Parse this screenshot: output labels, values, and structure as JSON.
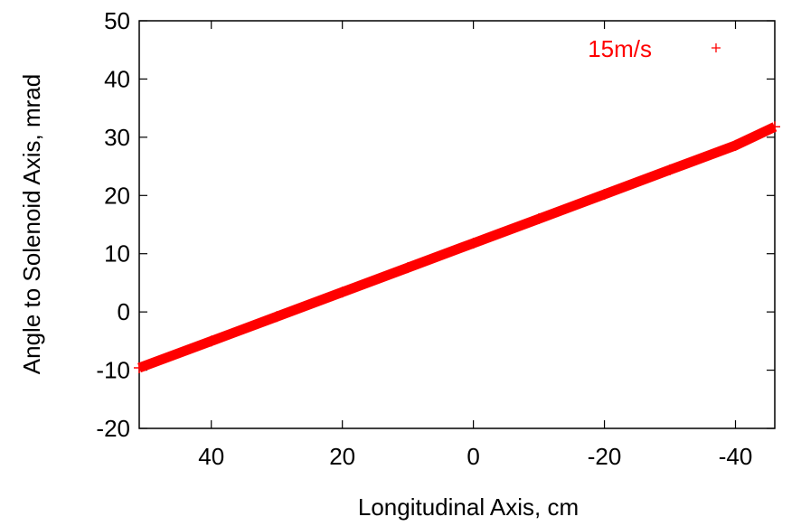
{
  "chart_data": {
    "type": "scatter",
    "title": "",
    "xlabel": "Longitudinal Axis, cm",
    "ylabel": "Angle to Solenoid Axis, mrad",
    "xlim": [
      51,
      -46
    ],
    "ylim": [
      -20,
      50
    ],
    "x_reversed": true,
    "x_ticks": [
      40,
      20,
      0,
      -20,
      -40
    ],
    "x_tick_labels": [
      "40",
      "20",
      "0",
      "-20",
      "-40"
    ],
    "y_ticks": [
      -20,
      -10,
      0,
      10,
      20,
      30,
      40,
      50
    ],
    "y_tick_labels": [
      "-20",
      "-10",
      "0",
      "10",
      "20",
      "30",
      "40",
      "50"
    ],
    "grid": false,
    "legend_position": "top-right",
    "series": [
      {
        "name": "15m/s",
        "color": "#ff0000",
        "marker": "plus",
        "x": [
          51,
          40,
          30,
          20,
          10,
          0,
          -10,
          -20,
          -30,
          -40,
          -46
        ],
        "y": [
          -9.6,
          -5.0,
          -0.8,
          3.4,
          7.6,
          11.8,
          16.0,
          20.2,
          24.4,
          28.6,
          31.8
        ]
      }
    ]
  }
}
